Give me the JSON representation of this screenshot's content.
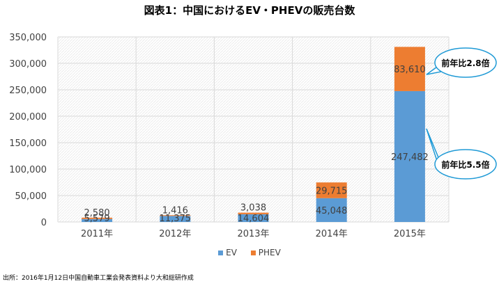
{
  "title": "図表1：中国におけるEV・PHEVの販売台数",
  "source": "出所：2016年1月12日中国自動車工業会発表資料より大和総研作成",
  "colors": {
    "ev": "#5b9bd5",
    "phev": "#ed7d31",
    "grid": "#d9d9d9",
    "callout_border": "#1f9ad6"
  },
  "legend": {
    "ev": "EV",
    "phev": "PHEV"
  },
  "callouts": {
    "phev_2015": "前年比2.8倍",
    "ev_2015": "前年比5.5倍"
  },
  "chart_data": {
    "type": "bar",
    "stacked": true,
    "categories": [
      "2011年",
      "2012年",
      "2013年",
      "2014年",
      "2015年"
    ],
    "series": [
      {
        "name": "EV",
        "values": [
          5579,
          11375,
          14604,
          45048,
          247482
        ]
      },
      {
        "name": "PHEV",
        "values": [
          2580,
          1416,
          3038,
          29715,
          83610
        ]
      }
    ],
    "value_labels": {
      "EV": [
        "5,579",
        "11,375",
        "14,604",
        "45,048",
        "247,482"
      ],
      "PHEV": [
        "2,580",
        "1,416",
        "3,038",
        "29,715",
        "83,610"
      ]
    },
    "ylim": [
      0,
      350000
    ],
    "yticks": [
      0,
      50000,
      100000,
      150000,
      200000,
      250000,
      300000,
      350000
    ],
    "ytick_labels": [
      "0",
      "50,000",
      "100,000",
      "150,000",
      "200,000",
      "250,000",
      "300,000",
      "350,000"
    ],
    "legend_position": "bottom",
    "grid": true
  }
}
